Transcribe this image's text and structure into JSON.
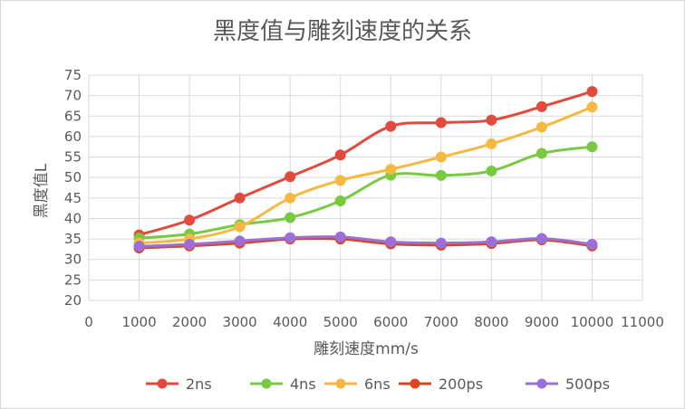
{
  "chart_data": {
    "type": "line",
    "smooth": true,
    "title": "黑度值与雕刻速度的关系",
    "xlabel": "雕刻速度mm/s",
    "ylabel": "黑度值L",
    "xlim": [
      0,
      11000
    ],
    "ylim": [
      20,
      75
    ],
    "x_ticks": [
      0,
      1000,
      2000,
      3000,
      4000,
      5000,
      6000,
      7000,
      8000,
      9000,
      10000,
      11000
    ],
    "y_ticks": [
      20,
      25,
      30,
      35,
      40,
      45,
      50,
      55,
      60,
      65,
      70,
      75
    ],
    "grid": true,
    "legend_position": "bottom",
    "x": [
      1000,
      2000,
      3000,
      4000,
      5000,
      6000,
      7000,
      8000,
      9000,
      10000
    ],
    "series": [
      {
        "name": "2ns",
        "color": "#e24a3b",
        "values": [
          36,
          39.6,
          45,
          50.2,
          55.5,
          62.5,
          63.4,
          64,
          67.3,
          71
        ]
      },
      {
        "name": "4ns",
        "color": "#7ac943",
        "values": [
          35.2,
          36.2,
          38.5,
          40.2,
          44.3,
          50.6,
          50.5,
          51.6,
          55.9,
          57.5
        ]
      },
      {
        "name": "6ns",
        "color": "#f5b942",
        "values": [
          34,
          35,
          38,
          45,
          49.3,
          52,
          55,
          58.2,
          62.3,
          67.2
        ]
      },
      {
        "name": "200ps",
        "color": "#d8451f",
        "values": [
          32.8,
          33.3,
          34,
          35,
          35,
          33.8,
          33.5,
          33.9,
          34.8,
          33.3
        ]
      },
      {
        "name": "500ps",
        "color": "#9b6fd6",
        "values": [
          33.2,
          33.7,
          34.5,
          35.3,
          35.5,
          34.3,
          34,
          34.3,
          35.1,
          33.7
        ]
      }
    ]
  }
}
